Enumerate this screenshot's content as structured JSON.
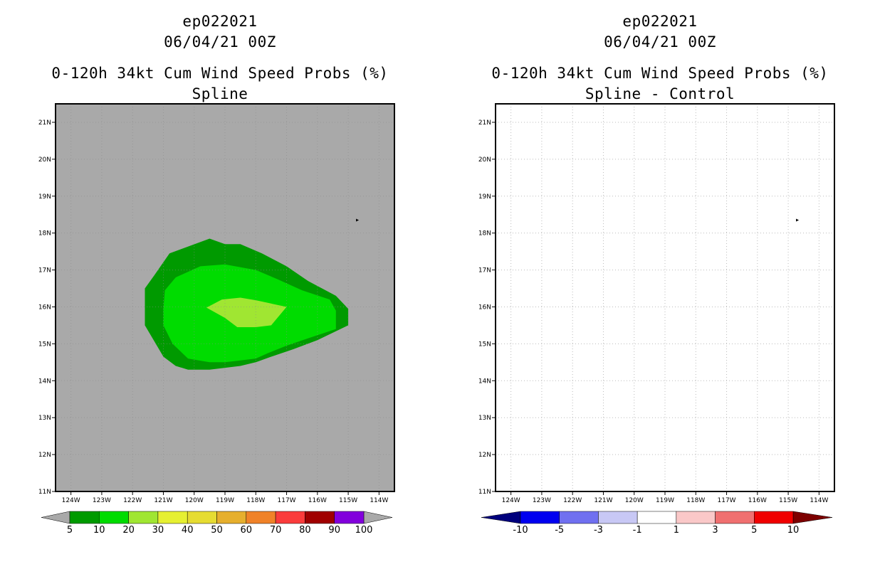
{
  "chart_data": [
    {
      "type": "contour-map",
      "storm_id": "ep022021",
      "datetime": "06/04/21 00Z",
      "title": "0-120h 34kt Cum Wind Speed Probs (%)",
      "subtitle": "Spline",
      "x_ticks": [
        "124W",
        "123W",
        "122W",
        "121W",
        "120W",
        "119W",
        "118W",
        "117W",
        "116W",
        "115W",
        "114W"
      ],
      "x_values": [
        -124,
        -123,
        -122,
        -121,
        -120,
        -119,
        -118,
        -117,
        -116,
        -115,
        -114
      ],
      "y_ticks": [
        "21N",
        "20N",
        "19N",
        "18N",
        "17N",
        "16N",
        "15N",
        "14N",
        "13N",
        "12N",
        "11N"
      ],
      "y_values": [
        21,
        20,
        19,
        18,
        17,
        16,
        15,
        14,
        13,
        12,
        11
      ],
      "xlim": [
        -124.5,
        -113.5
      ],
      "ylim": [
        11,
        21.5
      ],
      "background_color": "#a9a9a9",
      "grid": false,
      "storm_marker": {
        "lon": -114.7,
        "lat": 18.35
      },
      "colorbar": {
        "labels": [
          "5",
          "10",
          "20",
          "30",
          "40",
          "50",
          "60",
          "70",
          "80",
          "90",
          "100"
        ],
        "colors": [
          "#009a00",
          "#00dc00",
          "#a0e632",
          "#e6f032",
          "#e6dc32",
          "#e6af2d",
          "#f08228",
          "#fa3c3c",
          "#a00000",
          "#8200dc"
        ]
      },
      "contours": [
        {
          "level": "5-10",
          "color": "#009a00",
          "points": [
            [
              -121.6,
              16.5
            ],
            [
              -121.3,
              16.85
            ],
            [
              -120.8,
              17.45
            ],
            [
              -119.5,
              17.85
            ],
            [
              -119.0,
              17.7
            ],
            [
              -118.5,
              17.7
            ],
            [
              -117.8,
              17.45
            ],
            [
              -117.0,
              17.1
            ],
            [
              -116.3,
              16.7
            ],
            [
              -115.4,
              16.3
            ],
            [
              -115.0,
              15.95
            ],
            [
              -115.0,
              15.5
            ],
            [
              -116.0,
              15.1
            ],
            [
              -116.8,
              14.85
            ],
            [
              -117.5,
              14.65
            ],
            [
              -118.0,
              14.5
            ],
            [
              -118.5,
              14.4
            ],
            [
              -119.0,
              14.35
            ],
            [
              -119.5,
              14.3
            ],
            [
              -120.2,
              14.3
            ],
            [
              -120.6,
              14.4
            ],
            [
              -121.0,
              14.65
            ],
            [
              -121.6,
              15.5
            ]
          ]
        },
        {
          "level": "10-20",
          "color": "#00dc00",
          "points": [
            [
              -121.0,
              15.95
            ],
            [
              -120.95,
              16.45
            ],
            [
              -120.6,
              16.8
            ],
            [
              -119.8,
              17.1
            ],
            [
              -119.0,
              17.15
            ],
            [
              -118.0,
              17.0
            ],
            [
              -117.3,
              16.75
            ],
            [
              -116.5,
              16.45
            ],
            [
              -115.6,
              16.2
            ],
            [
              -115.4,
              15.9
            ],
            [
              -115.4,
              15.4
            ],
            [
              -116.3,
              15.15
            ],
            [
              -117.0,
              14.95
            ],
            [
              -117.6,
              14.75
            ],
            [
              -118.0,
              14.6
            ],
            [
              -118.5,
              14.55
            ],
            [
              -119.0,
              14.5
            ],
            [
              -119.5,
              14.5
            ],
            [
              -120.2,
              14.6
            ],
            [
              -120.7,
              15.0
            ],
            [
              -121.0,
              15.5
            ]
          ]
        },
        {
          "level": "20-30",
          "color": "#a0e632",
          "points": [
            [
              -119.6,
              15.98
            ],
            [
              -119.1,
              16.2
            ],
            [
              -118.5,
              16.25
            ],
            [
              -118.0,
              16.18
            ],
            [
              -117.0,
              16.0
            ],
            [
              -117.5,
              15.5
            ],
            [
              -118.0,
              15.45
            ],
            [
              -118.6,
              15.45
            ],
            [
              -119.0,
              15.7
            ]
          ]
        }
      ]
    },
    {
      "type": "contour-map",
      "storm_id": "ep022021",
      "datetime": "06/04/21 00Z",
      "title": "0-120h 34kt Cum Wind Speed Probs (%)",
      "subtitle": "Spline - Control",
      "x_ticks": [
        "124W",
        "123W",
        "122W",
        "121W",
        "120W",
        "119W",
        "118W",
        "117W",
        "116W",
        "115W",
        "114W"
      ],
      "x_values": [
        -124,
        -123,
        -122,
        -121,
        -120,
        -119,
        -118,
        -117,
        -116,
        -115,
        -114
      ],
      "y_ticks": [
        "21N",
        "20N",
        "19N",
        "18N",
        "17N",
        "16N",
        "15N",
        "14N",
        "13N",
        "12N",
        "11N"
      ],
      "y_values": [
        21,
        20,
        19,
        18,
        17,
        16,
        15,
        14,
        13,
        12,
        11
      ],
      "xlim": [
        -124.5,
        -113.5
      ],
      "ylim": [
        11,
        21.5
      ],
      "background_color": "#ffffff",
      "grid": true,
      "storm_marker": {
        "lon": -114.7,
        "lat": 18.35
      },
      "colorbar": {
        "labels": [
          "-10",
          "-5",
          "-3",
          "-1",
          "1",
          "3",
          "5",
          "10"
        ],
        "colors": [
          "#00007d",
          "#0000f0",
          "#7070f0",
          "#c8c8f5",
          "#ffffff",
          "#fac8c8",
          "#f07070",
          "#f00000",
          "#7d0000"
        ]
      },
      "contours": []
    }
  ]
}
